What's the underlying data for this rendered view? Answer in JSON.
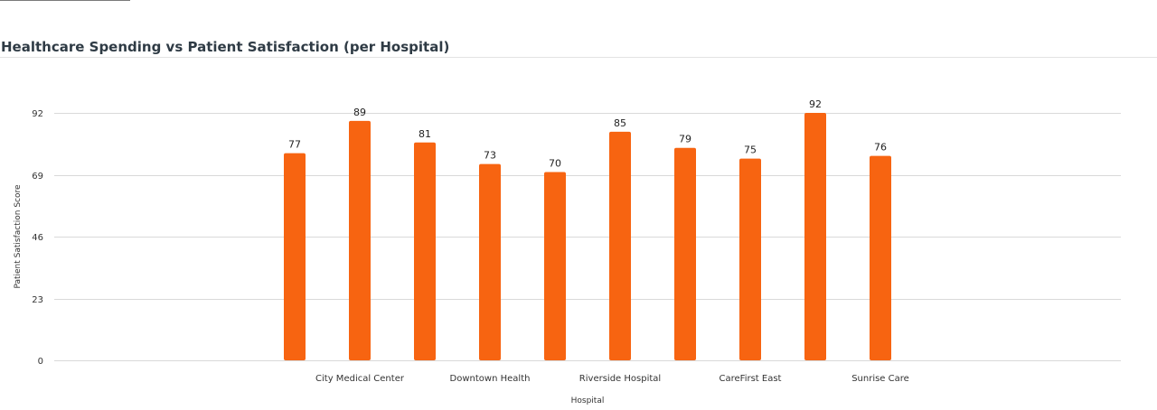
{
  "chart_data": {
    "type": "bar",
    "title": "Healthcare Spending vs Patient Satisfaction (per Hospital)",
    "xlabel": "Hospital",
    "ylabel": "Patient Satisfaction Score",
    "categories": [
      "",
      "City Medical Center",
      "",
      "Downtown Health",
      "",
      "Riverside Hospital",
      "",
      "CareFirst East",
      "",
      "Sunrise Care"
    ],
    "values": [
      77,
      89,
      81,
      73,
      70,
      85,
      79,
      75,
      92,
      76
    ],
    "ylim": [
      0,
      92
    ],
    "yticks": [
      0,
      23,
      46,
      69,
      92
    ],
    "grid": true,
    "bar_color": "#f76411",
    "grid_color": "#d9d9d9"
  }
}
